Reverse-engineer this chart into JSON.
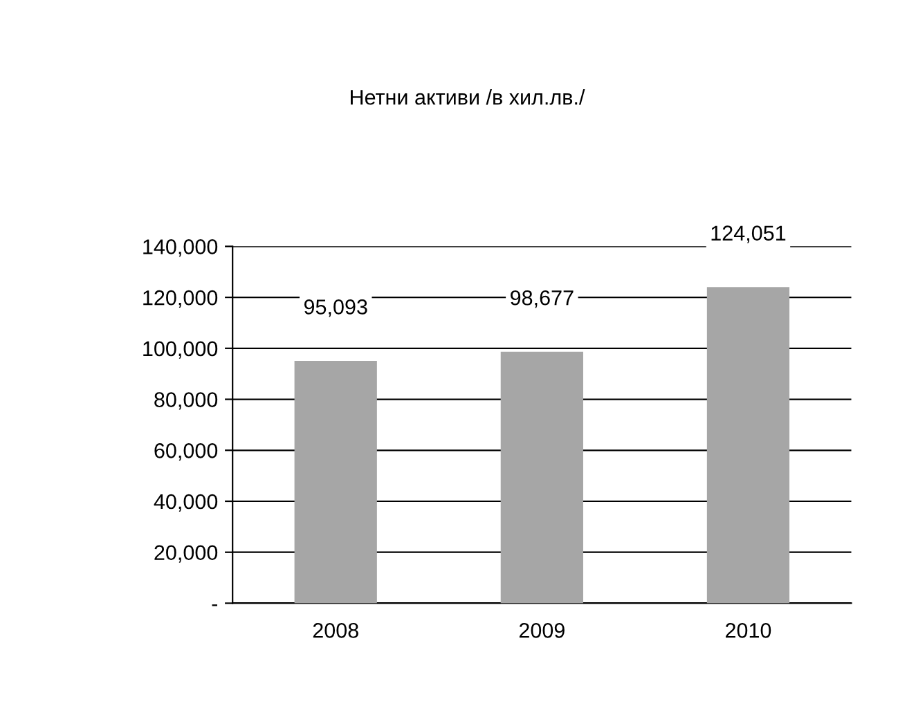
{
  "chart_data": {
    "type": "bar",
    "title": "Нетни активи /в хил.лв./",
    "categories": [
      "2008",
      "2009",
      "2010"
    ],
    "values": [
      95093,
      98677,
      124051
    ],
    "value_labels": [
      "95,093",
      "98,677",
      "124,051"
    ],
    "color": "#a6a6a6",
    "ylim": [
      0,
      140000
    ],
    "yticks": [
      {
        "value": 0,
        "label": "-"
      },
      {
        "value": 20000,
        "label": "20,000"
      },
      {
        "value": 40000,
        "label": "40,000"
      },
      {
        "value": 60000,
        "label": "60,000"
      },
      {
        "value": 80000,
        "label": "80,000"
      },
      {
        "value": 100000,
        "label": "100,000"
      },
      {
        "value": 120000,
        "label": "120,000"
      },
      {
        "value": 140000,
        "label": "140,000"
      }
    ],
    "grid": "y",
    "legend": false
  }
}
